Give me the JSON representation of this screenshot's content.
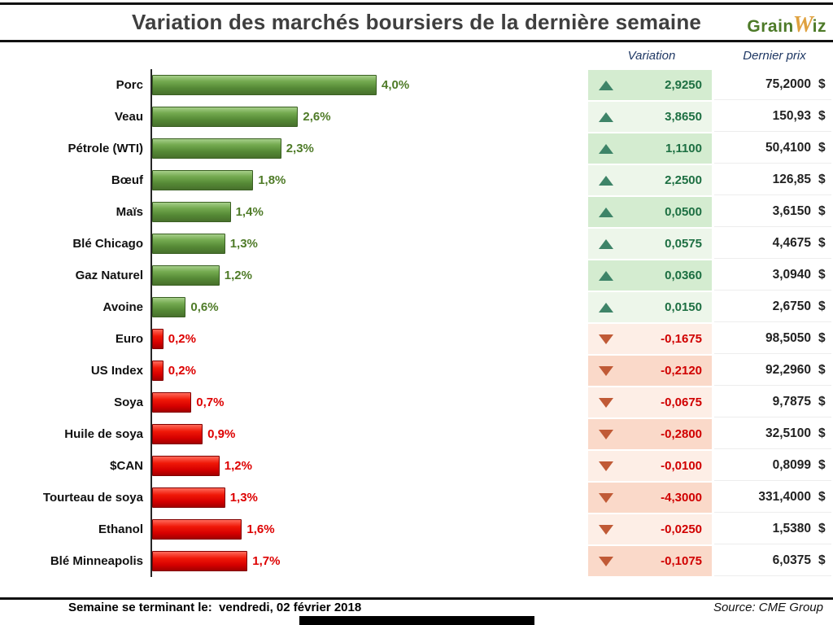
{
  "title": "Variation des marchés boursiers de la dernière semaine",
  "logo": {
    "part1": "Grain",
    "part2": "W",
    "part3": "iz"
  },
  "table": {
    "col_variation": "Variation",
    "col_price": "Dernier prix",
    "currency": "$"
  },
  "footer": {
    "label": "Semaine se terminant le: ",
    "date": "vendredi, 02 février 2018",
    "source": "Source: CME Group"
  },
  "chart_data": {
    "type": "bar",
    "orientation": "horizontal",
    "title": "Variation des marchés boursiers de la dernière semaine",
    "xlabel": "",
    "ylabel": "",
    "legend": false,
    "categories": [
      "Porc",
      "Veau",
      "Pétrole (WTI)",
      "Bœuf",
      "Maïs",
      "Blé Chicago",
      "Gaz Naturel",
      "Avoine",
      "Euro",
      "US Index",
      "Soya",
      "Huile de soya",
      "$CAN",
      "Tourteau de soya",
      "Ethanol",
      "Blé Minneapolis"
    ],
    "values": [
      4.0,
      2.6,
      2.3,
      1.8,
      1.4,
      1.3,
      1.2,
      0.6,
      -0.2,
      -0.2,
      -0.7,
      -0.9,
      -1.2,
      -1.3,
      -1.6,
      -1.7
    ],
    "pct_labels": [
      "4,0%",
      "2,6%",
      "2,3%",
      "1,8%",
      "1,4%",
      "1,3%",
      "1,2%",
      "0,6%",
      "0,2%",
      "0,2%",
      "0,7%",
      "0,9%",
      "1,2%",
      "1,3%",
      "1,6%",
      "1,7%"
    ],
    "directions": [
      "up",
      "up",
      "up",
      "up",
      "up",
      "up",
      "up",
      "up",
      "down",
      "down",
      "down",
      "down",
      "down",
      "down",
      "down",
      "down"
    ],
    "variations": [
      "2,9250",
      "3,8650",
      "1,1100",
      "2,2500",
      "0,0500",
      "0,0575",
      "0,0360",
      "0,0150",
      "-0,1675",
      "-0,2120",
      "-0,0675",
      "-0,2800",
      "-0,0100",
      "-4,3000",
      "-0,0250",
      "-0,1075"
    ],
    "prices": [
      "75,2000",
      "150,93",
      "50,4100",
      "126,85",
      "3,6150",
      "4,4675",
      "3,0940",
      "2,6750",
      "98,5050",
      "92,2960",
      "9,7875",
      "32,5100",
      "0,8099",
      "331,4000",
      "1,5380",
      "6,0375"
    ],
    "colors": {
      "up_bar": "#568a36",
      "down_bar": "#d60000",
      "up_text": "#1d6f42",
      "down_text": "#d00000",
      "up_cell_bg": "#d4ecd0",
      "down_cell_bg": "#fad9c9"
    }
  }
}
